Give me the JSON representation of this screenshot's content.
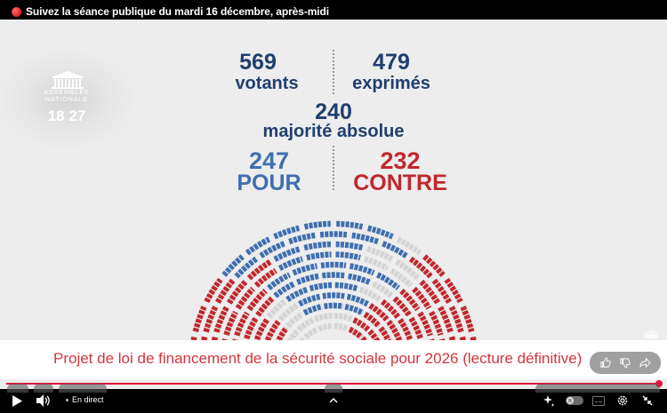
{
  "stream": {
    "title": "Suivez la séance publique du mardi 16 décembre, après-midi",
    "live_indicator_color": "#e00000"
  },
  "logo": {
    "name_line1": "ASSEMBLÉE",
    "name_line2": "NATIONALE",
    "clock": "18 27"
  },
  "vote": {
    "votants": {
      "value": "569",
      "label": "votants"
    },
    "exprimes": {
      "value": "479",
      "label": "exprimés"
    },
    "majorite": {
      "value": "240",
      "label": "majorité absolue"
    },
    "pour": {
      "value": "247",
      "label": "POUR"
    },
    "contre": {
      "value": "232",
      "label": "CONTRE"
    },
    "colors": {
      "navy": "#1f3f6e",
      "pour": "#3f6fb0",
      "contre": "#c1272d",
      "abstention": "#d4d4d4"
    }
  },
  "caption": {
    "text": "Projet de loi de financement de la sécurité sociale pour 2026 (lecture définitive)"
  },
  "reactions": {
    "icons": [
      "thumbs-up-icon",
      "thumbs-down-icon",
      "share-icon"
    ]
  },
  "player": {
    "live_label": "En direct",
    "progress_percent": 100,
    "progress_color": "#e0153a",
    "left_controls": [
      "play-icon",
      "volume-icon"
    ],
    "center_control": "chevron-up-icon",
    "right_controls": [
      "sparkle-icon",
      "autoplay-toggle",
      "subtitles-icon",
      "settings-icon",
      "exit-fullscreen-icon"
    ]
  }
}
